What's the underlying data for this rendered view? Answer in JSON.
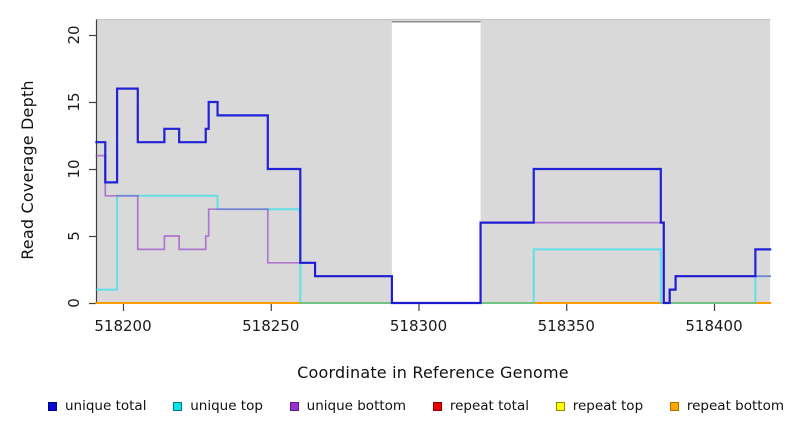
{
  "chart_data": {
    "type": "line",
    "subtype": "step-coverage",
    "title": "",
    "xlabel": "Coordinate in Reference Genome",
    "ylabel": "Read Coverage Depth",
    "xlim": [
      518191,
      518419
    ],
    "ylim": [
      0,
      21
    ],
    "x_ticks": [
      518200,
      518250,
      518300,
      518350,
      518400
    ],
    "y_ticks": [
      0,
      5,
      10,
      15,
      20
    ],
    "grid": false,
    "legend_position": "bottom",
    "panel_color": "#d9d9d9",
    "panel_top_edge_color": "#c6c6c6",
    "gap_band": {
      "from": 518291,
      "to": 518321,
      "fill": "#ffffff",
      "top_edge_color": "#8f8f8f"
    },
    "axis_color": "#404040",
    "tick_label_color": "#1a1a1a",
    "series": [
      {
        "name": "unique total",
        "line_color": "rgba(18,18,214,0.92)",
        "line_width": 2.2,
        "swatch_fill": "#0a0acd",
        "swatch_border": "#00008b",
        "z": 6,
        "steps": [
          [
            518191,
            12
          ],
          [
            518194,
            9
          ],
          [
            518198,
            16
          ],
          [
            518205,
            12
          ],
          [
            518214,
            13
          ],
          [
            518219,
            12
          ],
          [
            518228,
            13
          ],
          [
            518229,
            15
          ],
          [
            518232,
            14
          ],
          [
            518249,
            10
          ],
          [
            518260,
            3
          ],
          [
            518265,
            2
          ],
          [
            518291,
            0
          ],
          [
            518321,
            6
          ],
          [
            518339,
            10
          ],
          [
            518382,
            6
          ],
          [
            518383,
            0
          ],
          [
            518385,
            1
          ],
          [
            518387,
            2
          ],
          [
            518414,
            4
          ]
        ],
        "xend": 518419
      },
      {
        "name": "unique top",
        "line_color": "rgba(0,229,238,0.55)",
        "line_width": 2.0,
        "swatch_fill": "#00e5ee",
        "swatch_border": "#007a80",
        "z": 4,
        "steps": [
          [
            518191,
            1
          ],
          [
            518198,
            8
          ],
          [
            518232,
            7
          ],
          [
            518260,
            0
          ],
          [
            518339,
            4
          ],
          [
            518382,
            0
          ],
          [
            518414,
            2
          ]
        ],
        "xend": 518419
      },
      {
        "name": "unique bottom",
        "line_color": "rgba(148,58,200,0.62)",
        "line_width": 1.7,
        "swatch_fill": "#9932cc",
        "swatch_border": "#5c1a8b",
        "z": 5,
        "steps": [
          [
            518191,
            11
          ],
          [
            518194,
            8
          ],
          [
            518205,
            4
          ],
          [
            518214,
            5
          ],
          [
            518219,
            4
          ],
          [
            518228,
            5
          ],
          [
            518229,
            7
          ],
          [
            518249,
            3
          ],
          [
            518265,
            2
          ],
          [
            518291,
            0
          ],
          [
            518321,
            6
          ],
          [
            518383,
            0
          ],
          [
            518385,
            1
          ],
          [
            518387,
            2
          ]
        ],
        "xend": 518419
      },
      {
        "name": "repeat total",
        "line_color": "rgba(220,0,0,0.9)",
        "line_width": 1.5,
        "swatch_fill": "#e60000",
        "swatch_border": "#8b0000",
        "z": 1,
        "steps": [
          [
            518191,
            0
          ]
        ],
        "xend": 518419
      },
      {
        "name": "repeat top",
        "line_color": "rgba(235,235,0,0.9)",
        "line_width": 1.5,
        "swatch_fill": "#ffff00",
        "swatch_border": "#8b8b00",
        "z": 2,
        "steps": [
          [
            518191,
            0
          ]
        ],
        "xend": 518419
      },
      {
        "name": "repeat bottom",
        "line_color": "rgba(255,153,0,0.95)",
        "line_width": 2.0,
        "swatch_fill": "#ffa500",
        "swatch_border": "#b06f00",
        "z": 3,
        "steps": [
          [
            518191,
            0
          ]
        ],
        "xend": 518419
      }
    ]
  }
}
